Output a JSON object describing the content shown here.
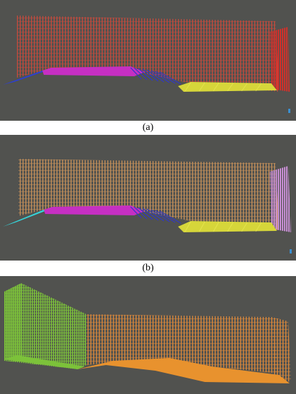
{
  "panels": [
    {
      "id": "a",
      "caption": "(a)",
      "colors": {
        "background": "#51524f",
        "wall": "#c94a3c",
        "end_wall": "#d2302a",
        "left_ramp": "#2c3fd6",
        "platform": "#c62fc3",
        "stairs": "#3038c6",
        "right_floor": "#d6d63a",
        "marker": "#3a8fd0"
      }
    },
    {
      "id": "b",
      "caption": "(b)",
      "colors": {
        "background": "#51524f",
        "wall": "#c9925a",
        "end_wall": "#c98fd6",
        "left_ramp": "#35d3d8",
        "platform": "#c62fc3",
        "stairs": "#3038c6",
        "right_floor": "#d6d63a",
        "marker": "#3a8fd0"
      }
    },
    {
      "id": "c",
      "caption": "",
      "colors": {
        "background": "#51524f",
        "left_block": "#7cc23a",
        "wall": "#e08a3a",
        "floor": "#e8922e"
      }
    }
  ]
}
